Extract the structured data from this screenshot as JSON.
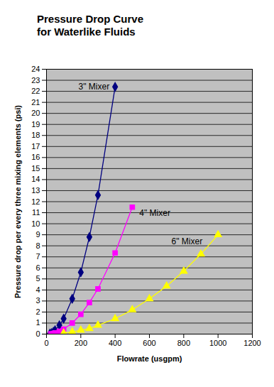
{
  "chart_data": {
    "type": "line",
    "title": "Pressure Drop Curve for Waterlike Fluids",
    "x_label": "Flowrate (usgpm)",
    "y_label": "Pressure drop per every three mixing elements (psi)",
    "xlim": [
      0,
      1200
    ],
    "xticks": [
      0,
      200,
      400,
      600,
      800,
      1000,
      1200
    ],
    "ylim": [
      0,
      24
    ],
    "yticks": [
      0,
      1,
      2,
      3,
      4,
      5,
      6,
      7,
      8,
      9,
      10,
      11,
      12,
      13,
      14,
      15,
      16,
      17,
      18,
      19,
      20,
      21,
      22,
      23,
      24
    ],
    "grid": true,
    "series": [
      {
        "name": "3\" Mixer",
        "color": "#000080",
        "marker": "diamond",
        "x": [
          20,
          30,
          40,
          50,
          75,
          100,
          150,
          200,
          250,
          300,
          400
        ],
        "values": [
          0.05,
          0.1,
          0.2,
          0.35,
          0.8,
          1.4,
          3.2,
          5.6,
          8.8,
          12.6,
          22.4
        ]
      },
      {
        "name": "4\" Mixer",
        "color": "#ff00ff",
        "marker": "square",
        "x": [
          25,
          40,
          50,
          75,
          100,
          150,
          200,
          250,
          300,
          400,
          500
        ],
        "values": [
          0.02,
          0.06,
          0.1,
          0.25,
          0.45,
          1.0,
          1.8,
          2.85,
          4.1,
          7.35,
          11.5
        ]
      },
      {
        "name": "6\" Mixer",
        "color": "#ffff00",
        "marker": "triangle",
        "x": [
          100,
          150,
          200,
          250,
          300,
          400,
          500,
          600,
          700,
          800,
          900,
          1000
        ],
        "values": [
          0.1,
          0.2,
          0.35,
          0.5,
          0.8,
          1.4,
          2.2,
          3.2,
          4.35,
          5.7,
          7.25,
          9.0
        ]
      }
    ]
  }
}
